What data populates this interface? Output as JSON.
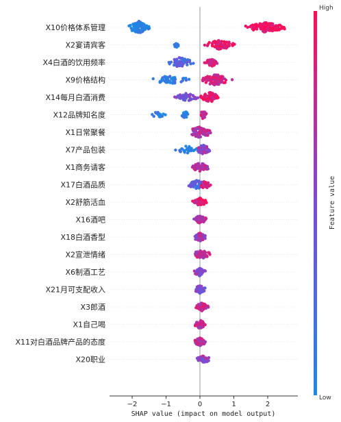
{
  "chart_data": {
    "type": "scatter",
    "subtype": "beeswarm",
    "xlabel": "SHAP value (impact on model output)",
    "xlim": [
      -2.6,
      2.9
    ],
    "xticks": [
      -2,
      -1,
      0,
      1,
      2
    ],
    "xtick_labels": [
      "−2",
      "−1",
      "0",
      "1",
      "2"
    ],
    "colorbar": {
      "title": "Feature value",
      "high_label": "High",
      "low_label": "Low",
      "low_color": "#1e88e5",
      "high_color": "#ff0d57"
    },
    "features": [
      {
        "name": "X10价格体系管理",
        "clusters": [
          {
            "center": -1.8,
            "spread": 0.35,
            "n": 90,
            "val": 0.05,
            "height": 9
          },
          {
            "center": 1.95,
            "spread": 0.7,
            "n": 140,
            "val": 0.95,
            "height": 7
          }
        ]
      },
      {
        "name": "X2宴请宾客",
        "clusters": [
          {
            "center": -0.7,
            "spread": 0.1,
            "n": 12,
            "val": 0.05,
            "height": 4
          },
          {
            "center": 0.6,
            "spread": 0.55,
            "n": 90,
            "val": 0.9,
            "height": 7
          }
        ]
      },
      {
        "name": "X4白酒的饮用频率",
        "clusters": [
          {
            "center": -0.6,
            "spread": 0.5,
            "n": 60,
            "val": 0.3,
            "height": 7
          },
          {
            "center": 0.35,
            "spread": 0.25,
            "n": 40,
            "val": 0.9,
            "height": 6
          }
        ]
      },
      {
        "name": "X9价格结构",
        "clusters": [
          {
            "center": -0.9,
            "spread": 0.7,
            "n": 45,
            "val": 0.1,
            "height": 6
          },
          {
            "center": 0.45,
            "spread": 0.55,
            "n": 90,
            "val": 0.85,
            "height": 8
          }
        ]
      },
      {
        "name": "X14每月白酒消费",
        "clusters": [
          {
            "center": -0.4,
            "spread": 0.4,
            "n": 40,
            "val": 0.45,
            "height": 6
          },
          {
            "center": 0.3,
            "spread": 0.35,
            "n": 70,
            "val": 0.9,
            "height": 7
          }
        ]
      },
      {
        "name": "X12品牌知名度",
        "clusters": [
          {
            "center": -1.25,
            "spread": 0.3,
            "n": 20,
            "val": 0.05,
            "height": 4
          },
          {
            "center": -0.45,
            "spread": 0.12,
            "n": 20,
            "val": 0.05,
            "height": 6
          },
          {
            "center": 0.1,
            "spread": 0.1,
            "n": 40,
            "val": 0.8,
            "height": 7
          }
        ]
      },
      {
        "name": "X1日常聚餐",
        "clusters": [
          {
            "center": 0.0,
            "spread": 0.45,
            "n": 80,
            "val": 0.7,
            "height": 8
          }
        ]
      },
      {
        "name": "X7产品包装",
        "clusters": [
          {
            "center": -0.4,
            "spread": 0.4,
            "n": 30,
            "val": 0.05,
            "height": 6
          },
          {
            "center": 0.1,
            "spread": 0.25,
            "n": 60,
            "val": 0.6,
            "height": 7
          }
        ]
      },
      {
        "name": "X1商务请客",
        "clusters": [
          {
            "center": 0.0,
            "spread": 0.35,
            "n": 70,
            "val": 0.75,
            "height": 6
          }
        ]
      },
      {
        "name": "X17白酒品质",
        "clusters": [
          {
            "center": -0.1,
            "spread": 0.3,
            "n": 40,
            "val": 0.3,
            "height": 7
          },
          {
            "center": 0.15,
            "spread": 0.2,
            "n": 40,
            "val": 0.85,
            "height": 6
          }
        ]
      },
      {
        "name": "X2舒筋活血",
        "clusters": [
          {
            "center": 0.0,
            "spread": 0.25,
            "n": 60,
            "val": 0.85,
            "height": 6
          }
        ]
      },
      {
        "name": "X16酒吧",
        "clusters": [
          {
            "center": 0.0,
            "spread": 0.25,
            "n": 60,
            "val": 0.7,
            "height": 6
          }
        ]
      },
      {
        "name": "X18白酒香型",
        "clusters": [
          {
            "center": 0.0,
            "spread": 0.25,
            "n": 60,
            "val": 0.65,
            "height": 6
          }
        ]
      },
      {
        "name": "X2宣泄情绪",
        "clusters": [
          {
            "center": 0.05,
            "spread": 0.35,
            "n": 60,
            "val": 0.75,
            "height": 6
          }
        ]
      },
      {
        "name": "X6制酒工艺",
        "clusters": [
          {
            "center": 0.0,
            "spread": 0.2,
            "n": 55,
            "val": 0.55,
            "height": 6
          }
        ]
      },
      {
        "name": "X21月可支配收入",
        "clusters": [
          {
            "center": 0.0,
            "spread": 0.2,
            "n": 55,
            "val": 0.5,
            "height": 6
          }
        ]
      },
      {
        "name": "X3郎酒",
        "clusters": [
          {
            "center": 0.05,
            "spread": 0.25,
            "n": 55,
            "val": 0.8,
            "height": 6
          }
        ]
      },
      {
        "name": "X1自己喝",
        "clusters": [
          {
            "center": 0.0,
            "spread": 0.2,
            "n": 55,
            "val": 0.8,
            "height": 6
          }
        ]
      },
      {
        "name": "X11对白酒品牌产品的态度",
        "clusters": [
          {
            "center": 0.0,
            "spread": 0.22,
            "n": 55,
            "val": 0.75,
            "height": 6
          }
        ]
      },
      {
        "name": "X20职业",
        "clusters": [
          {
            "center": 0.1,
            "spread": 0.3,
            "n": 50,
            "val": 0.6,
            "height": 5
          }
        ]
      }
    ]
  }
}
